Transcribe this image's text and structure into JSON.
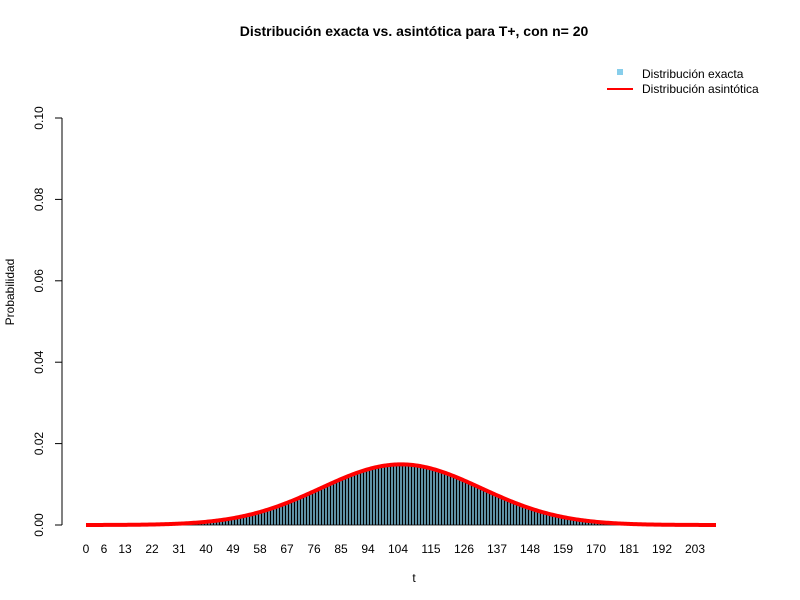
{
  "chart_data": {
    "type": "bar",
    "title": "Distribución exacta vs. asintótica para T+, con n= 20",
    "xlabel": "t",
    "ylabel": "Probabilidad",
    "n": 20,
    "xlim": [
      0,
      210
    ],
    "ylim": [
      0,
      0.1
    ],
    "x_tick_labels": [
      "0",
      "6",
      "13",
      "22",
      "31",
      "40",
      "49",
      "58",
      "67",
      "76",
      "85",
      "94",
      "104",
      "115",
      "126",
      "137",
      "148",
      "159",
      "170",
      "181",
      "192",
      "203"
    ],
    "y_ticks": [
      "0.00",
      "0.02",
      "0.04",
      "0.06",
      "0.08",
      "0.10"
    ],
    "legend_position": "top-right",
    "series": [
      {
        "name": "Distribución exacta",
        "kind": "bars",
        "color": "#87ceeb",
        "edge_color": "#000000"
      },
      {
        "name": "Distribución asintótica",
        "kind": "line",
        "color": "#ff0000",
        "mean": 105,
        "sd": 26.786
      }
    ]
  }
}
